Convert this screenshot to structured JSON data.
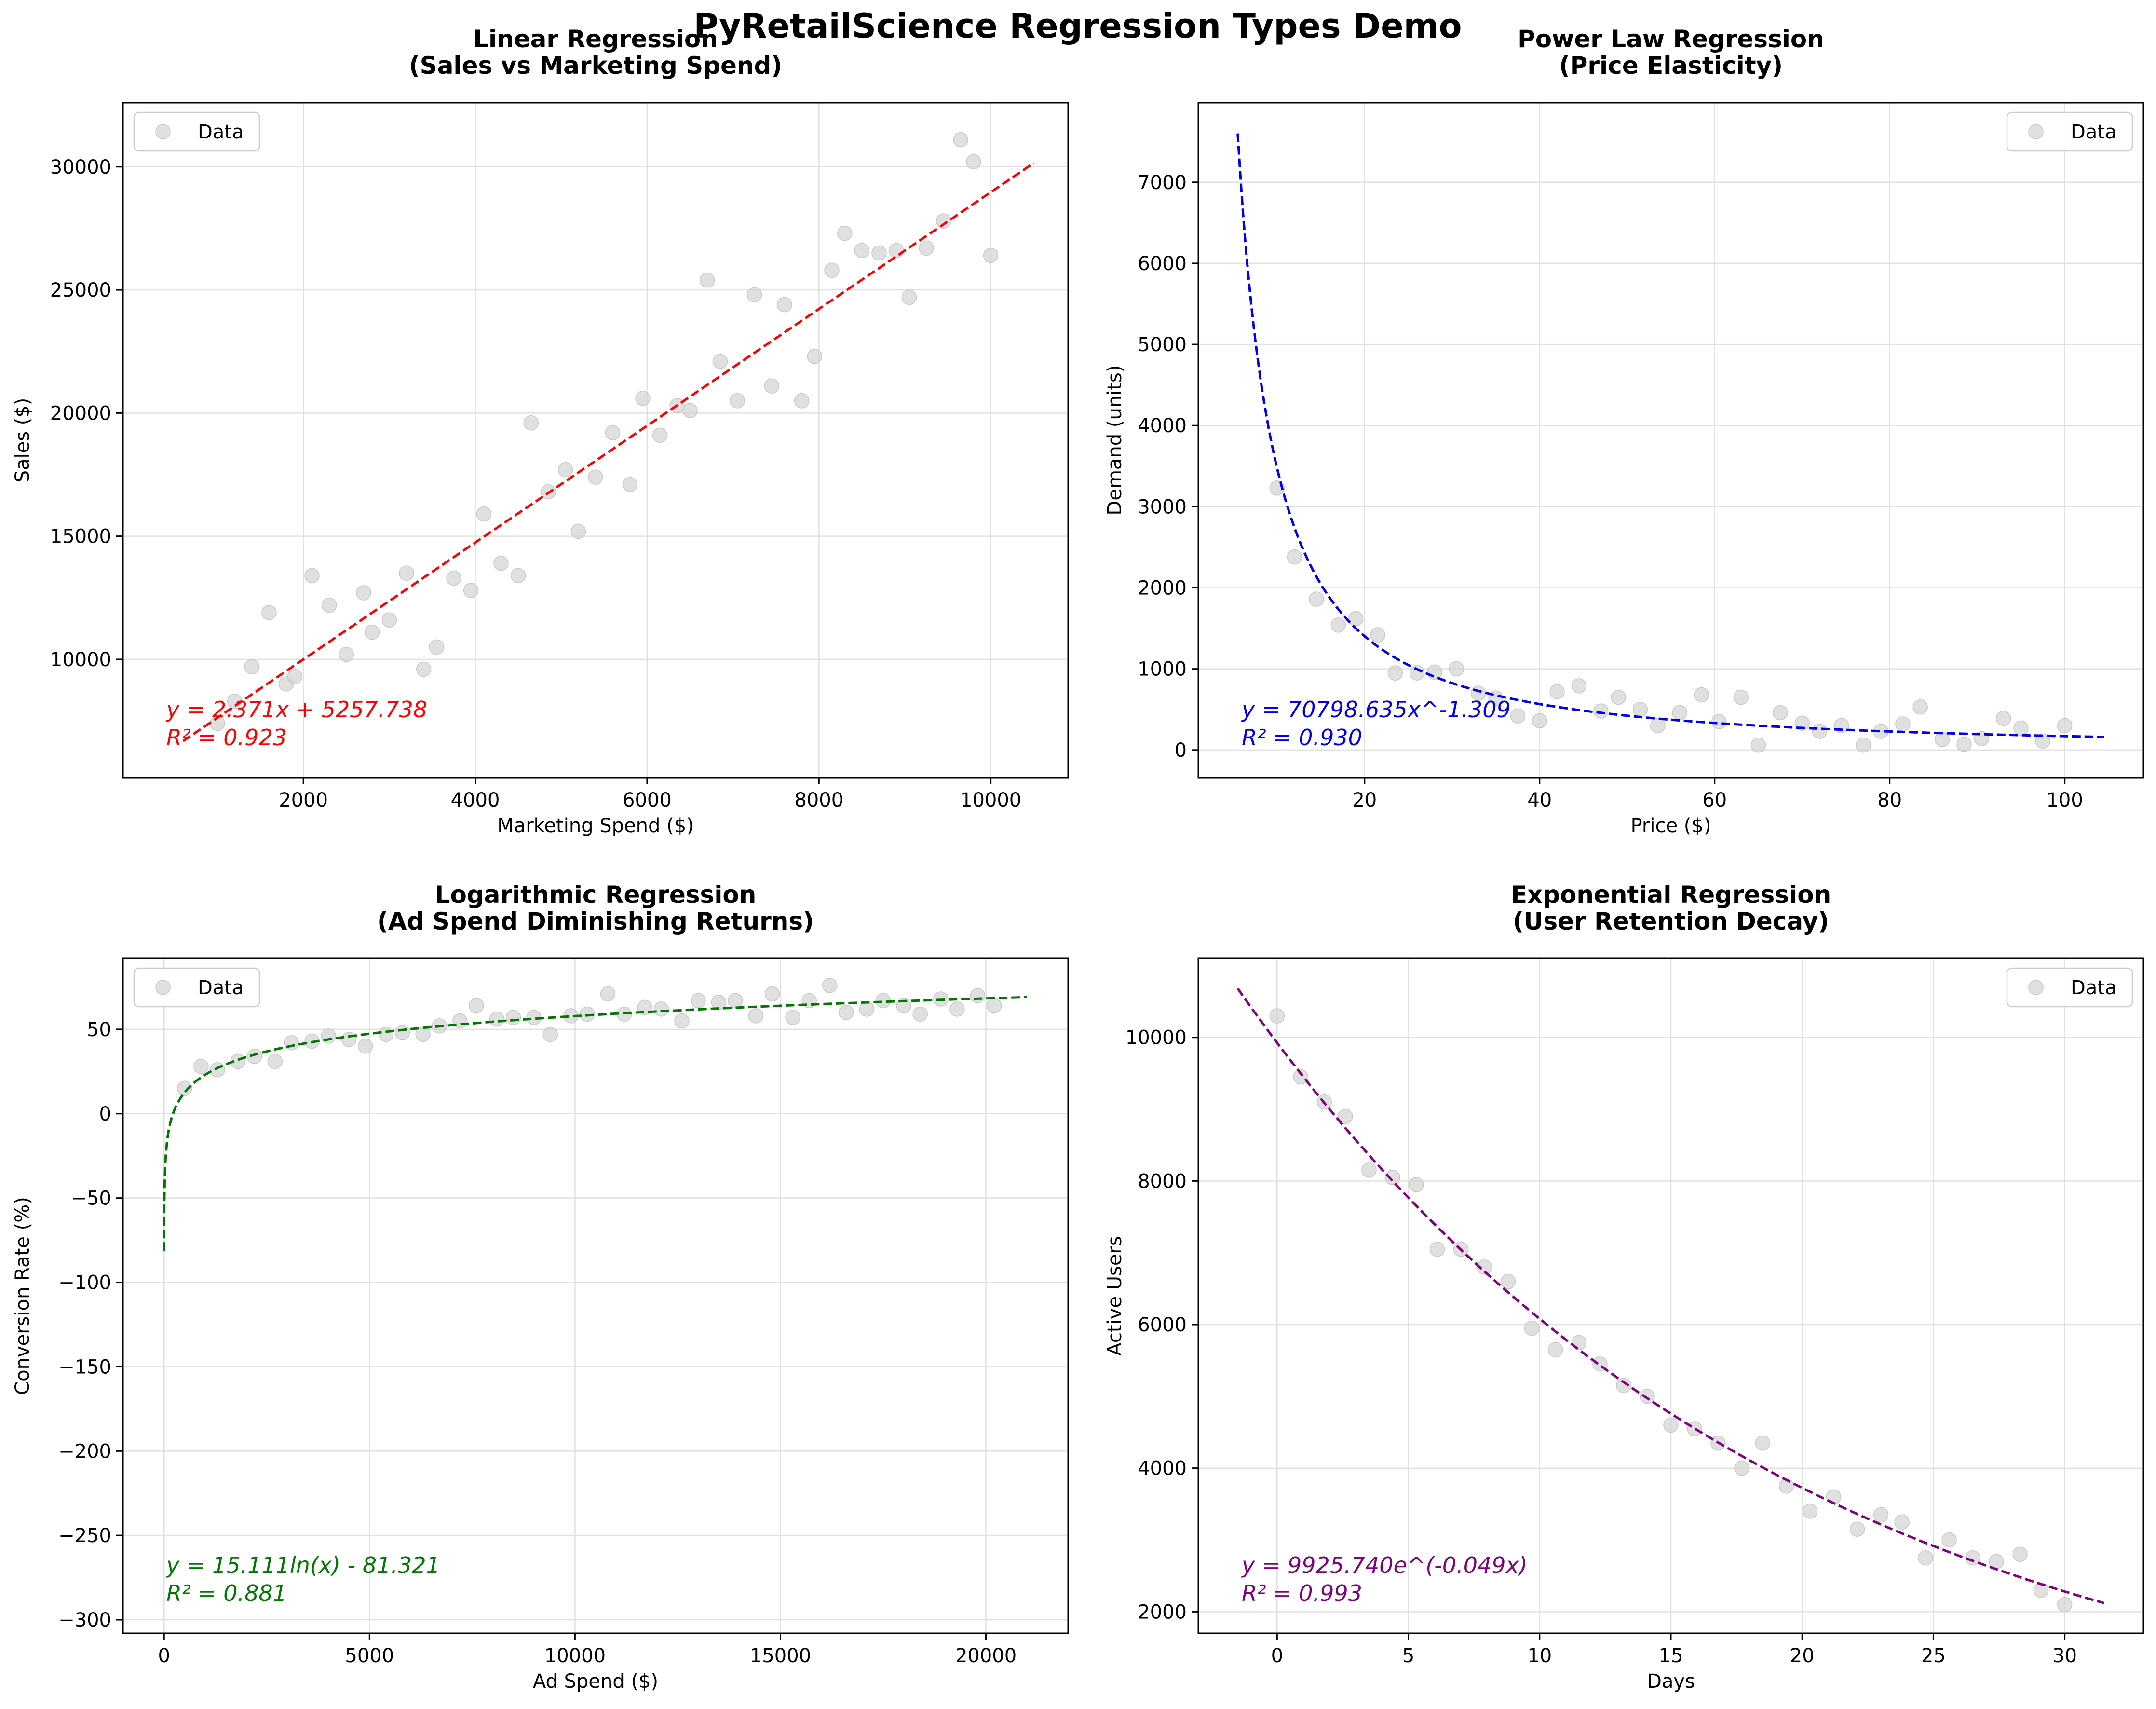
{
  "suptitle": "PyRetailScience Regression Types Demo",
  "legend_label": "Data",
  "chart_data": [
    {
      "type": "scatter",
      "title_line1": "Linear Regression",
      "title_line2": "(Sales vs Marketing Spend)",
      "xlabel": "Marketing Spend ($)",
      "ylabel": "Sales ($)",
      "xlim": [
        -100,
        10900
      ],
      "ylim": [
        5200,
        32600
      ],
      "xticks": [
        2000,
        4000,
        6000,
        8000,
        10000
      ],
      "xtick_labels": [
        "2000",
        "4000",
        "6000",
        "8000",
        "10000"
      ],
      "yticks": [
        10000,
        15000,
        20000,
        25000,
        30000
      ],
      "ytick_labels": [
        "10000",
        "15000",
        "20000",
        "25000",
        "30000"
      ],
      "legend_position": "upper left",
      "fit_color": "#ff0000",
      "fit_kind": "linear",
      "fit_params": [
        2.371,
        5257.738
      ],
      "fit_range": [
        600,
        10500
      ],
      "equation": "y = 2.371x + 5257.738",
      "r2_text": "R² = 0.923",
      "points": [
        [
          1000,
          7400
        ],
        [
          1200,
          8300
        ],
        [
          1400,
          9700
        ],
        [
          1600,
          11900
        ],
        [
          1800,
          9000
        ],
        [
          1900,
          9300
        ],
        [
          2100,
          13400
        ],
        [
          2300,
          12200
        ],
        [
          2500,
          10200
        ],
        [
          2700,
          12700
        ],
        [
          2800,
          11100
        ],
        [
          3000,
          11600
        ],
        [
          3200,
          13500
        ],
        [
          3400,
          9600
        ],
        [
          3550,
          10500
        ],
        [
          3750,
          13300
        ],
        [
          3950,
          12800
        ],
        [
          4100,
          15900
        ],
        [
          4300,
          13900
        ],
        [
          4500,
          13400
        ],
        [
          4650,
          19600
        ],
        [
          4850,
          16800
        ],
        [
          5050,
          17700
        ],
        [
          5200,
          15200
        ],
        [
          5400,
          17400
        ],
        [
          5600,
          19200
        ],
        [
          5800,
          17100
        ],
        [
          5950,
          20600
        ],
        [
          6150,
          19100
        ],
        [
          6350,
          20300
        ],
        [
          6500,
          20100
        ],
        [
          6700,
          25400
        ],
        [
          6850,
          22100
        ],
        [
          7050,
          20500
        ],
        [
          7250,
          24800
        ],
        [
          7450,
          21100
        ],
        [
          7600,
          24400
        ],
        [
          7800,
          20500
        ],
        [
          7950,
          22300
        ],
        [
          8150,
          25800
        ],
        [
          8300,
          27300
        ],
        [
          8500,
          26600
        ],
        [
          8700,
          26500
        ],
        [
          8900,
          26600
        ],
        [
          9050,
          24700
        ],
        [
          9250,
          26700
        ],
        [
          9450,
          27800
        ],
        [
          9650,
          31100
        ],
        [
          9800,
          30200
        ],
        [
          10000,
          26400
        ]
      ]
    },
    {
      "type": "scatter",
      "title_line1": "Power Law Regression",
      "title_line2": "(Price Elasticity)",
      "xlabel": "Price ($)",
      "ylabel": "Demand (units)",
      "xlim": [
        1,
        109
      ],
      "ylim": [
        -340,
        7980
      ],
      "xticks": [
        20,
        40,
        60,
        80,
        100
      ],
      "xtick_labels": [
        "20",
        "40",
        "60",
        "80",
        "100"
      ],
      "yticks": [
        0,
        1000,
        2000,
        3000,
        4000,
        5000,
        6000,
        7000
      ],
      "ytick_labels": [
        "0",
        "1000",
        "2000",
        "3000",
        "4000",
        "5000",
        "6000",
        "7000"
      ],
      "legend_position": "upper right",
      "fit_color": "#0000ee",
      "fit_kind": "power",
      "fit_params": [
        70798.635,
        -1.309
      ],
      "fit_range": [
        5.5,
        104.5
      ],
      "equation": "y = 70798.635x^-1.309",
      "r2_text": "R² = 0.930",
      "points": [
        [
          10,
          3230
        ],
        [
          12,
          2380
        ],
        [
          14.5,
          1860
        ],
        [
          17,
          1540
        ],
        [
          19,
          1620
        ],
        [
          21.5,
          1420
        ],
        [
          23.5,
          950
        ],
        [
          26,
          950
        ],
        [
          28,
          960
        ],
        [
          30.5,
          1000
        ],
        [
          33,
          700
        ],
        [
          35,
          640
        ],
        [
          37.5,
          420
        ],
        [
          40,
          360
        ],
        [
          42,
          720
        ],
        [
          44.5,
          790
        ],
        [
          47,
          480
        ],
        [
          49,
          650
        ],
        [
          51.5,
          500
        ],
        [
          53.5,
          300
        ],
        [
          56,
          460
        ],
        [
          58.5,
          680
        ],
        [
          60.5,
          350
        ],
        [
          63,
          650
        ],
        [
          65,
          60
        ],
        [
          67.5,
          460
        ],
        [
          70,
          330
        ],
        [
          72,
          230
        ],
        [
          74.5,
          300
        ],
        [
          77,
          60
        ],
        [
          79,
          230
        ],
        [
          81.5,
          320
        ],
        [
          83.5,
          530
        ],
        [
          86,
          130
        ],
        [
          88.5,
          70
        ],
        [
          90.5,
          140
        ],
        [
          93,
          390
        ],
        [
          95,
          270
        ],
        [
          97.5,
          110
        ],
        [
          100,
          300
        ]
      ]
    },
    {
      "type": "scatter",
      "title_line1": "Logarithmic Regression",
      "title_line2": "(Ad Spend Diminishing Returns)",
      "xlabel": "Ad Spend ($)",
      "ylabel": "Conversion Rate (%)",
      "xlim": [
        -1000,
        22000
      ],
      "ylim": [
        -308,
        92
      ],
      "xticks": [
        0,
        5000,
        10000,
        15000,
        20000
      ],
      "xtick_labels": [
        "0",
        "5000",
        "10000",
        "15000",
        "20000"
      ],
      "yticks": [
        -300,
        -250,
        -200,
        -150,
        -100,
        -50,
        0,
        50
      ],
      "ytick_labels": [
        "−300",
        "−250",
        "−200",
        "−150",
        "−100",
        "−50",
        "0",
        "50"
      ],
      "legend_position": "upper left",
      "fit_color": "#007700",
      "fit_kind": "log",
      "fit_params": [
        15.111,
        -81.321
      ],
      "fit_range": [
        1,
        21000
      ],
      "equation": "y = 15.111ln(x) - 81.321",
      "r2_text": "R² = 0.881",
      "points": [
        [
          500,
          15
        ],
        [
          900,
          28
        ],
        [
          1300,
          26
        ],
        [
          1800,
          31
        ],
        [
          2200,
          34
        ],
        [
          2700,
          31
        ],
        [
          3100,
          42
        ],
        [
          3600,
          43
        ],
        [
          4000,
          46
        ],
        [
          4500,
          44
        ],
        [
          4900,
          40
        ],
        [
          5400,
          47
        ],
        [
          5800,
          48
        ],
        [
          6300,
          47
        ],
        [
          6700,
          52
        ],
        [
          7200,
          55
        ],
        [
          7600,
          64
        ],
        [
          8100,
          56
        ],
        [
          8500,
          57
        ],
        [
          9000,
          57
        ],
        [
          9400,
          47
        ],
        [
          9900,
          58
        ],
        [
          10300,
          59
        ],
        [
          10800,
          71
        ],
        [
          11200,
          59
        ],
        [
          11700,
          63
        ],
        [
          12100,
          62
        ],
        [
          12600,
          55
        ],
        [
          13000,
          67
        ],
        [
          13500,
          66
        ],
        [
          13900,
          67
        ],
        [
          14400,
          58
        ],
        [
          14800,
          71
        ],
        [
          15300,
          57
        ],
        [
          15700,
          67
        ],
        [
          16200,
          76
        ],
        [
          16600,
          60
        ],
        [
          17100,
          62
        ],
        [
          17500,
          67
        ],
        [
          18000,
          64
        ],
        [
          18400,
          59
        ],
        [
          18900,
          68
        ],
        [
          19300,
          62
        ],
        [
          19800,
          70
        ],
        [
          20200,
          64
        ]
      ]
    },
    {
      "type": "scatter",
      "title_line1": "Exponential Regression",
      "title_line2": "(User Retention Decay)",
      "xlabel": "Days",
      "ylabel": "Active Users",
      "xlim": [
        -3,
        33
      ],
      "ylim": [
        1700,
        11100
      ],
      "xticks": [
        0,
        5,
        10,
        15,
        20,
        25,
        30
      ],
      "xtick_labels": [
        "0",
        "5",
        "10",
        "15",
        "20",
        "25",
        "30"
      ],
      "yticks": [
        2000,
        4000,
        6000,
        8000,
        10000
      ],
      "ytick_labels": [
        "2000",
        "4000",
        "6000",
        "8000",
        "10000"
      ],
      "legend_position": "upper right",
      "fit_color": "#800080",
      "fit_kind": "exp",
      "fit_params": [
        9925.74,
        -0.049
      ],
      "fit_range": [
        -1.5,
        31.5
      ],
      "equation": "y = 9925.740e^(-0.049x)",
      "r2_text": "R² = 0.993",
      "points": [
        [
          0,
          10300
        ],
        [
          0.9,
          9450
        ],
        [
          1.8,
          9100
        ],
        [
          2.6,
          8900
        ],
        [
          3.5,
          8150
        ],
        [
          4.4,
          8050
        ],
        [
          5.3,
          7950
        ],
        [
          6.1,
          7050
        ],
        [
          7,
          7050
        ],
        [
          7.9,
          6800
        ],
        [
          8.8,
          6600
        ],
        [
          9.7,
          5950
        ],
        [
          10.6,
          5650
        ],
        [
          11.5,
          5750
        ],
        [
          12.3,
          5450
        ],
        [
          13.2,
          5150
        ],
        [
          14.1,
          5000
        ],
        [
          15,
          4600
        ],
        [
          15.9,
          4550
        ],
        [
          16.8,
          4350
        ],
        [
          17.7,
          4000
        ],
        [
          18.5,
          4350
        ],
        [
          19.4,
          3750
        ],
        [
          20.3,
          3400
        ],
        [
          21.2,
          3600
        ],
        [
          22.1,
          3150
        ],
        [
          23,
          3350
        ],
        [
          23.8,
          3250
        ],
        [
          24.7,
          2750
        ],
        [
          25.6,
          3000
        ],
        [
          26.5,
          2750
        ],
        [
          27.4,
          2700
        ],
        [
          28.3,
          2800
        ],
        [
          29.1,
          2300
        ],
        [
          30,
          2100
        ]
      ]
    }
  ]
}
